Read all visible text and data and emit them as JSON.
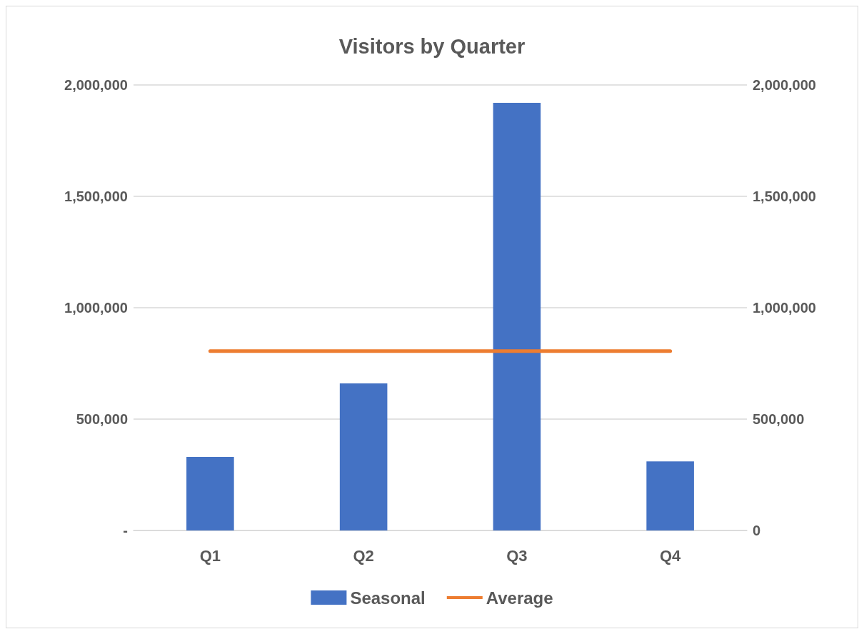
{
  "chart_data": {
    "type": "bar",
    "title": "Visitors by Quarter",
    "categories": [
      "Q1",
      "Q2",
      "Q3",
      "Q4"
    ],
    "series": [
      {
        "name": "Seasonal",
        "color": "#4472c4",
        "values": [
          330000,
          660000,
          1920000,
          310000
        ]
      },
      {
        "name": "Average",
        "type": "line",
        "color": "#ed7d31",
        "values": [
          805000,
          805000,
          805000,
          805000
        ],
        "marker": "none",
        "line_style": "solid"
      }
    ],
    "ylim": [
      0,
      2000000
    ],
    "yticks": [
      {
        "value": 0,
        "label": "-"
      },
      {
        "value": 500000,
        "label": "500,000"
      },
      {
        "value": 1000000,
        "label": "1,000,000"
      },
      {
        "value": 1500000,
        "label": "1,500,000"
      },
      {
        "value": 2000000,
        "label": "2,000,000"
      }
    ],
    "y2lim": [
      0,
      2000000
    ],
    "y2ticks": [
      0,
      {
        "value": 500000,
        "label": "500,000"
      },
      {
        "value": 1000000,
        "label": "1,000,000"
      },
      {
        "value": 1500000,
        "label": "1,500,000"
      },
      {
        "value": 2000000,
        "label": "2,000,000"
      }
    ],
    "grid": "y",
    "legend": "bottom"
  }
}
